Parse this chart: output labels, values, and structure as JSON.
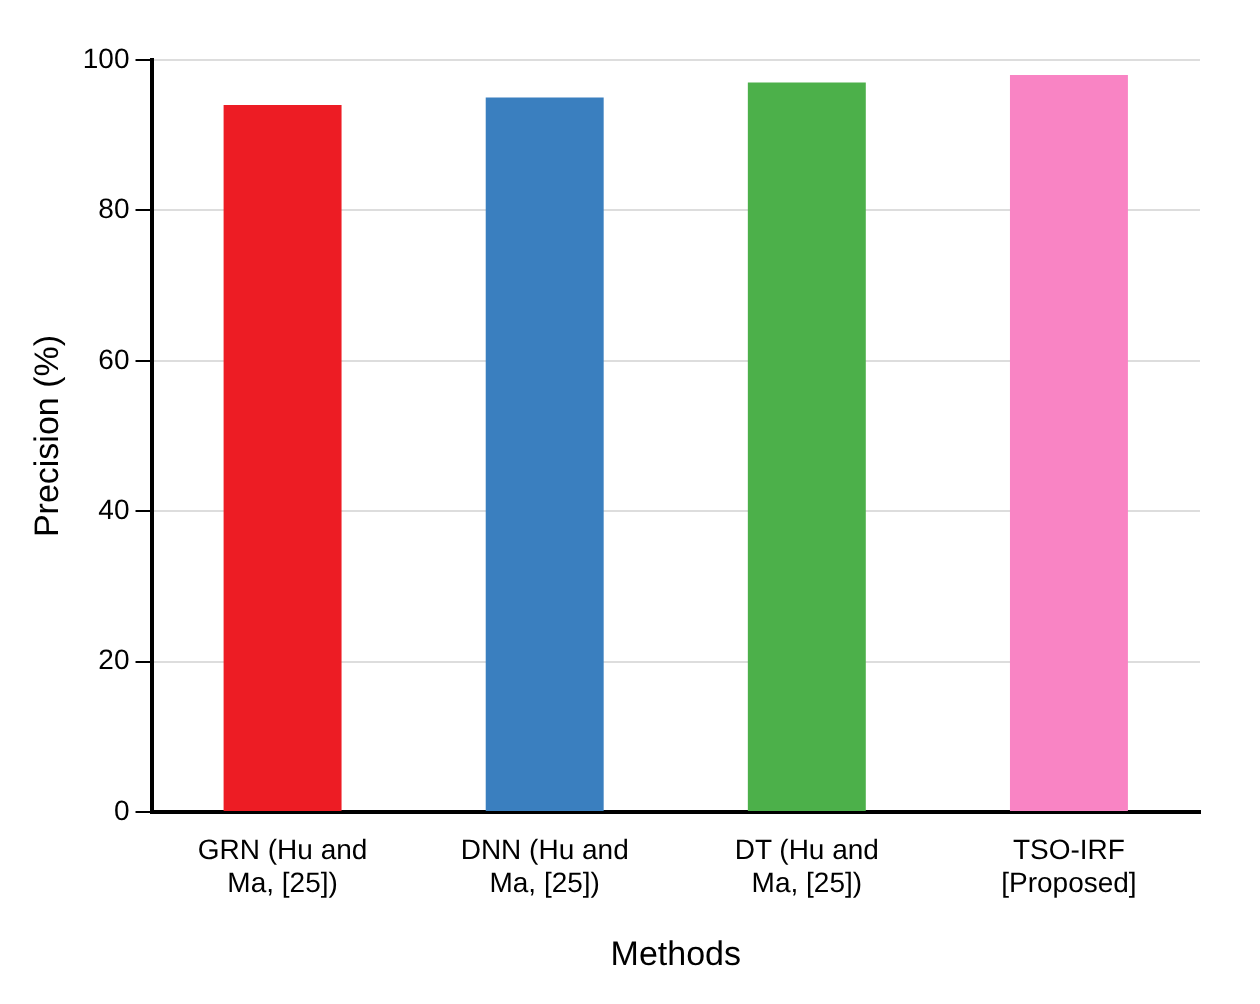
{
  "chart_data": {
    "type": "bar",
    "xlabel": "Methods",
    "ylabel": "Precision (%)",
    "categories": [
      "GRN (Hu and Ma, [25])",
      "DNN (Hu and Ma, [25])",
      "DT (Hu and Ma, [25])",
      "TSO-IRF [Proposed]"
    ],
    "values": [
      94,
      95,
      97,
      98
    ],
    "colors": [
      "#ed1c24",
      "#3a7fbf",
      "#4cb04a",
      "#f984c4"
    ],
    "ylim": [
      0,
      100
    ],
    "yticks": [
      0,
      20,
      40,
      60,
      80,
      100
    ],
    "grid": "y"
  }
}
